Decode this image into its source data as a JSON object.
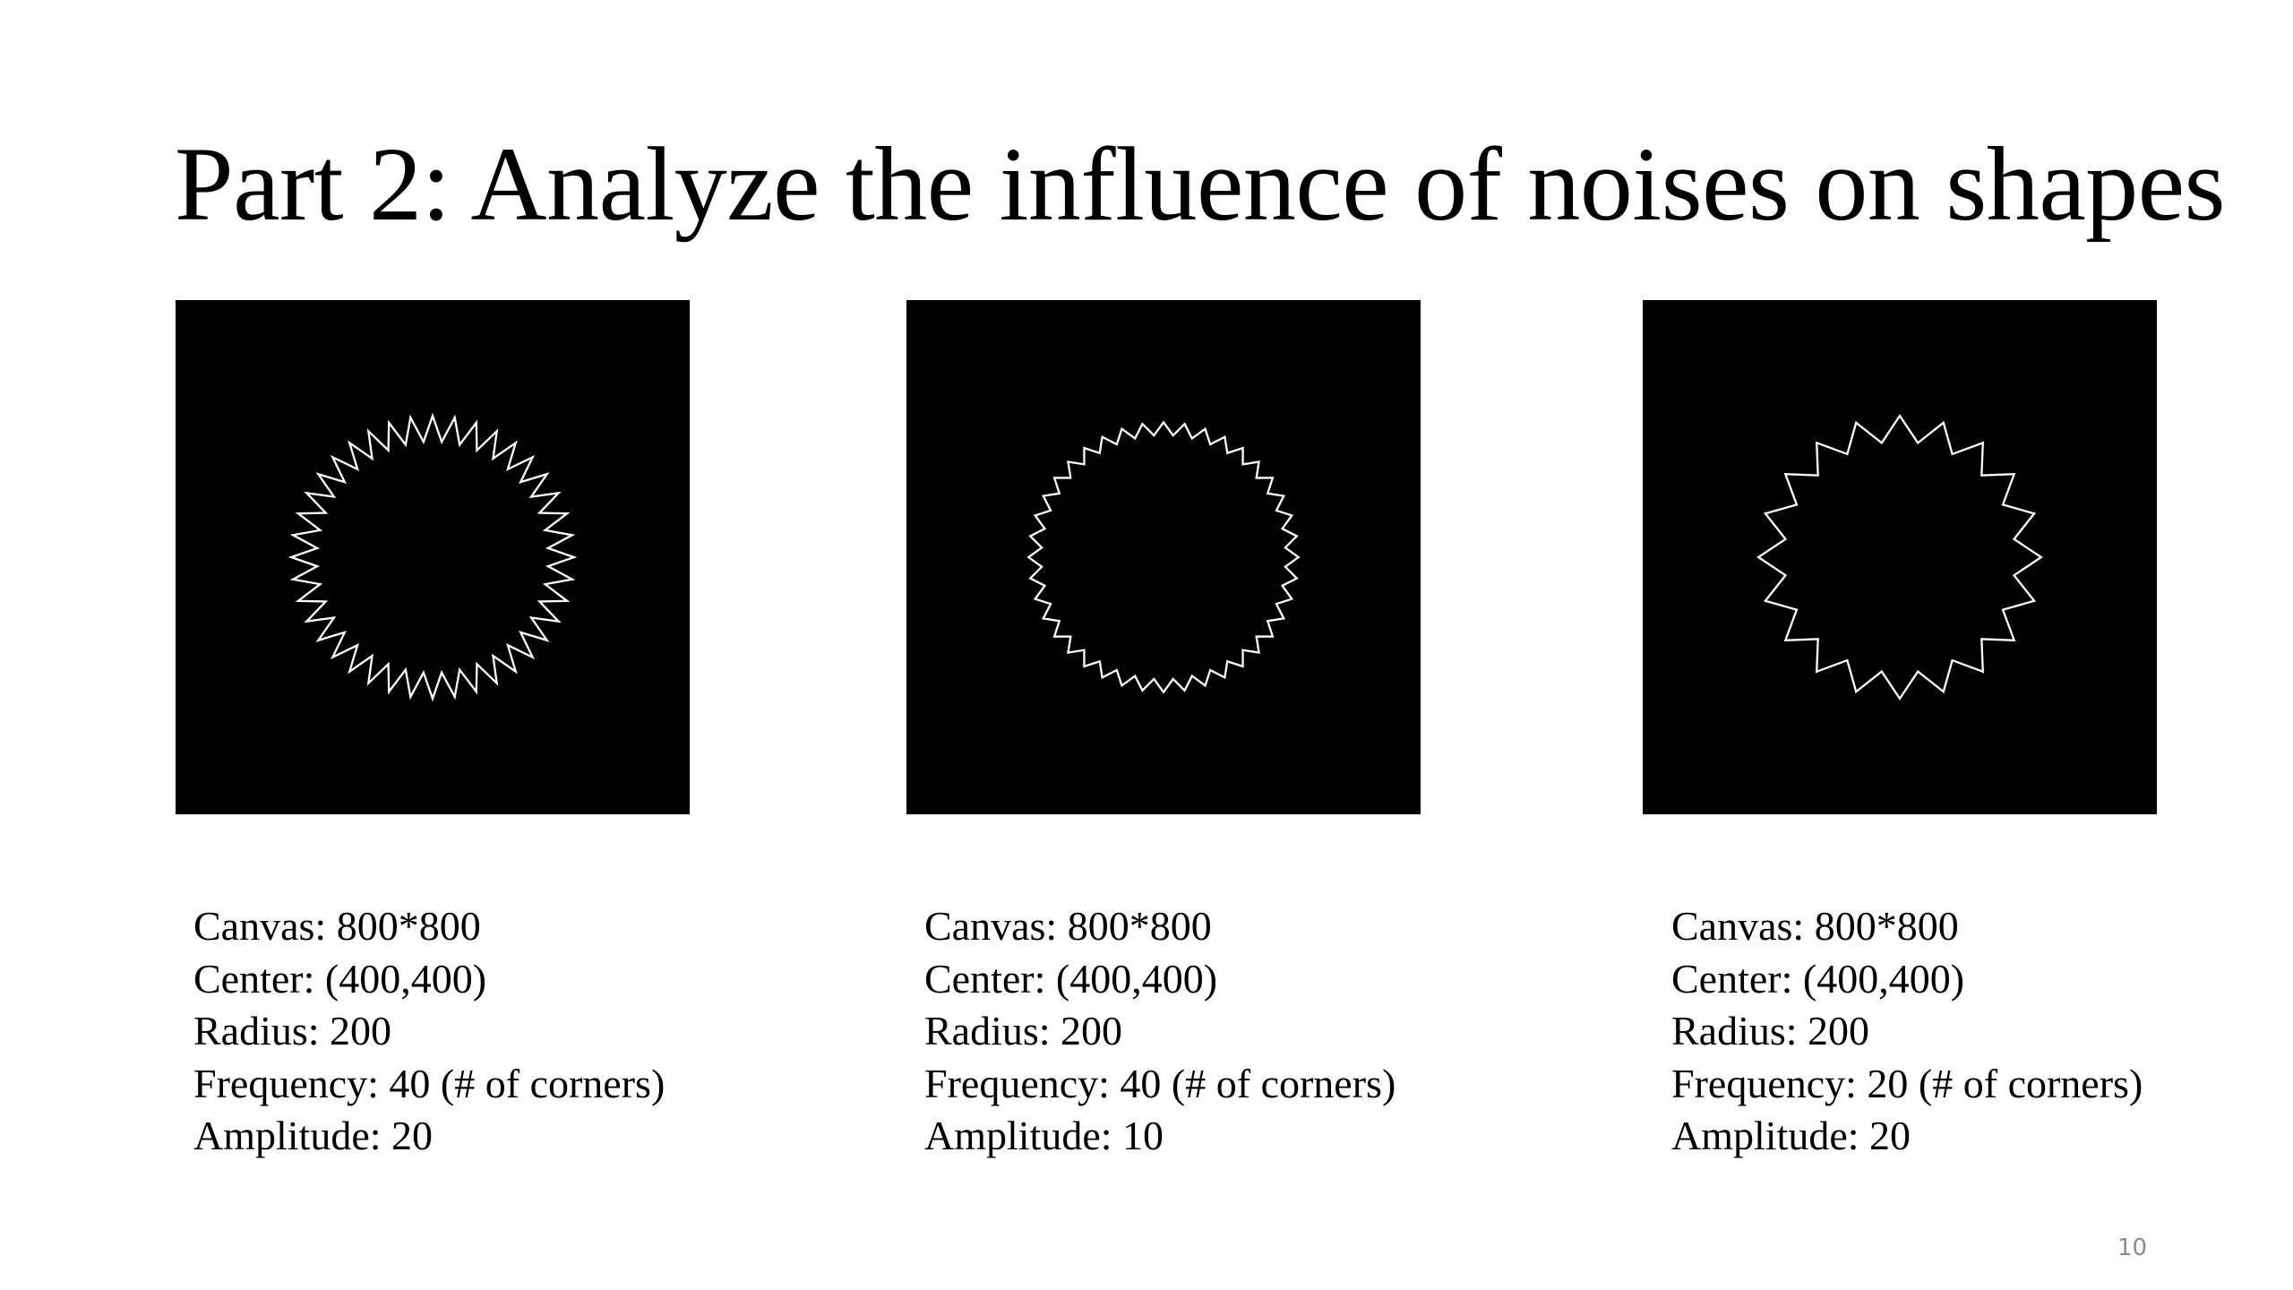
{
  "slide": {
    "title": "Part 2: Analyze the influence of noises on shapes",
    "page_number": "10",
    "background": "#ffffff",
    "panel_background": "#000000",
    "shape_color": "#ffffff"
  },
  "panels": [
    {
      "canvas": 800,
      "center": [
        400,
        400
      ],
      "radius": 200,
      "frequency": 40,
      "amplitude": 20,
      "caption": {
        "canvas": "Canvas: 800*800",
        "center": "Center: (400,400)",
        "radius": "Radius: 200",
        "frequency": "Frequency: 40 (# of corners)",
        "amplitude": "Amplitude: 20"
      }
    },
    {
      "canvas": 800,
      "center": [
        400,
        400
      ],
      "radius": 200,
      "frequency": 40,
      "amplitude": 10,
      "caption": {
        "canvas": "Canvas: 800*800",
        "center": "Center: (400,400)",
        "radius": "Radius: 200",
        "frequency": "Frequency: 40 (# of corners)",
        "amplitude": "Amplitude: 10"
      }
    },
    {
      "canvas": 800,
      "center": [
        400,
        400
      ],
      "radius": 200,
      "frequency": 20,
      "amplitude": 20,
      "caption": {
        "canvas": "Canvas: 800*800",
        "center": "Center: (400,400)",
        "radius": "Radius: 200",
        "frequency": "Frequency: 20 (# of corners)",
        "amplitude": "Amplitude: 20"
      }
    }
  ]
}
